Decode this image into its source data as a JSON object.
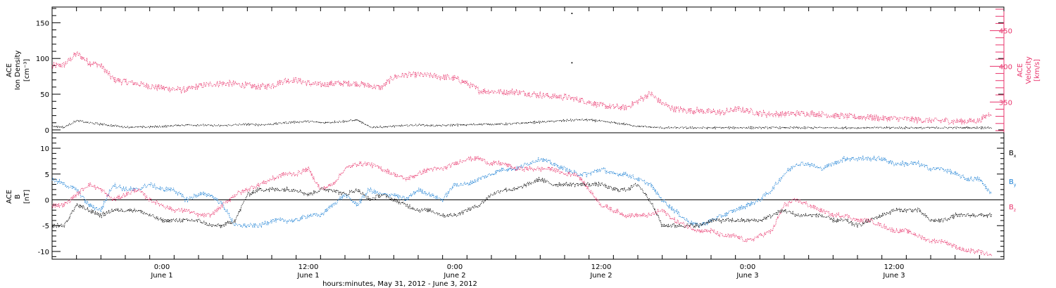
{
  "colors": {
    "black": "#000000",
    "red": "#e8336b",
    "blue": "#1a7fd4"
  },
  "chart_data": [
    {
      "type": "scatter",
      "panel": "top",
      "left_axis_label": [
        "ACE",
        "Ion Density",
        "[cm⁻³]"
      ],
      "right_axis_label": [
        "ACE",
        "Velocity",
        "[km/s]"
      ],
      "left_ticks": [
        "0",
        "50",
        "100",
        "150"
      ],
      "right_ticks": [
        "350",
        "400",
        "450"
      ],
      "left_ylim": [
        -4,
        172
      ],
      "right_ylim": [
        307,
        483
      ],
      "x_hours_range": [
        -9,
        69
      ],
      "series": [
        {
          "axis": "right",
          "color": "red",
          "hours": [
            -9,
            -8,
            -7,
            -6,
            -5,
            -4,
            -3,
            -2,
            -1,
            0,
            1,
            2,
            3,
            4,
            5,
            6,
            7,
            8,
            9,
            10,
            11,
            12,
            13,
            14,
            15,
            16,
            17,
            18,
            19,
            20,
            21,
            22,
            23,
            24,
            25,
            26,
            27,
            28,
            29,
            30,
            31,
            32,
            33,
            34,
            35,
            36,
            37,
            38,
            39,
            40,
            41,
            42,
            43,
            44,
            45,
            46,
            47,
            48,
            49,
            50,
            51,
            52,
            53,
            54,
            55,
            56,
            57,
            58,
            59,
            60,
            61,
            62,
            63,
            64,
            65,
            66,
            67,
            68
          ],
          "values": [
            400,
            402,
            418,
            406,
            401,
            382,
            378,
            376,
            372,
            370,
            368,
            367,
            372,
            375,
            376,
            375,
            373,
            371,
            373,
            380,
            381,
            376,
            374,
            376,
            376,
            376,
            373,
            370,
            385,
            388,
            388,
            387,
            385,
            383,
            376,
            366,
            365,
            364,
            364,
            362,
            360,
            358,
            357,
            354,
            350,
            345,
            343,
            342,
            351,
            362,
            348,
            340,
            338,
            338,
            336,
            335,
            340,
            338,
            334,
            333,
            333,
            334,
            334,
            333,
            331,
            330,
            329,
            329,
            327,
            327,
            326,
            325,
            324,
            324,
            323,
            323,
            324,
            336
          ]
        },
        {
          "axis": "left",
          "color": "black",
          "hours": [
            -9,
            -8,
            -7,
            -6,
            -5,
            -4,
            -3,
            -2,
            -1,
            0,
            1,
            2,
            3,
            4,
            5,
            6,
            7,
            8,
            9,
            10,
            11,
            12,
            13,
            14,
            15,
            16,
            17,
            18,
            19,
            20,
            21,
            22,
            23,
            24,
            25,
            26,
            27,
            28,
            29,
            30,
            31,
            32,
            33,
            34,
            35,
            36,
            37,
            38,
            39,
            40,
            41,
            42,
            43,
            44,
            45,
            46,
            47,
            48,
            49,
            50,
            51,
            52,
            53,
            54,
            55,
            56,
            57,
            58,
            59,
            60,
            61,
            62,
            63,
            64,
            65,
            66,
            67,
            68
          ],
          "values": [
            5,
            4,
            13,
            10,
            8,
            6,
            4,
            4,
            4,
            5,
            6,
            7,
            7,
            6,
            6,
            7,
            8,
            7,
            8,
            10,
            11,
            12,
            10,
            11,
            12,
            14,
            4,
            4,
            5,
            6,
            7,
            6,
            6,
            7,
            7,
            8,
            8,
            8,
            9,
            10,
            11,
            12,
            13,
            14,
            14,
            12,
            10,
            8,
            5,
            4,
            3,
            3,
            3,
            3,
            3,
            3,
            3,
            3,
            3,
            3,
            3,
            3,
            3,
            3,
            3,
            3,
            3,
            3,
            3,
            3,
            3,
            3,
            3,
            3,
            3,
            3,
            3,
            3
          ]
        }
      ],
      "outliers": [
        {
          "hour": 33.6,
          "value": 163
        },
        {
          "hour": 33.6,
          "value": 94
        }
      ]
    },
    {
      "type": "scatter",
      "panel": "bottom",
      "left_axis_label": [
        "ACE",
        "B",
        "[nT]"
      ],
      "left_ticks": [
        "-10",
        "-5",
        "0",
        "5",
        "10"
      ],
      "ylim": [
        -11.5,
        13
      ],
      "x_hours_range": [
        -9,
        69
      ],
      "legend": [
        {
          "label": "B",
          "sub": "x",
          "color": "black"
        },
        {
          "label": "B",
          "sub": "y",
          "color": "blue"
        },
        {
          "label": "B",
          "sub": "z",
          "color": "red"
        }
      ],
      "series": [
        {
          "name": "Bx",
          "color": "black",
          "hours": [
            -9,
            -8,
            -7,
            -6,
            -5,
            -4,
            -3,
            -2,
            -1,
            0,
            1,
            2,
            3,
            4,
            5,
            6,
            7,
            8,
            9,
            10,
            11,
            12,
            13,
            14,
            15,
            16,
            17,
            18,
            19,
            20,
            21,
            22,
            23,
            24,
            25,
            26,
            27,
            28,
            29,
            30,
            31,
            32,
            33,
            34,
            35,
            36,
            37,
            38,
            39,
            40,
            41,
            42,
            43,
            44,
            45,
            46,
            47,
            48,
            49,
            50,
            51,
            52,
            53,
            54,
            55,
            56,
            57,
            58,
            59,
            60,
            61,
            62,
            63,
            64,
            65,
            66,
            67,
            68
          ],
          "values": [
            -5,
            -5,
            -1,
            -2,
            -3,
            -2,
            -2,
            -2,
            -3,
            -4,
            -4,
            -4,
            -4,
            -5,
            -5,
            -4,
            1,
            2,
            2,
            2,
            2,
            1,
            2,
            2,
            1,
            2,
            0,
            1,
            0,
            -1,
            -2,
            -2,
            -3,
            -3,
            -2,
            -1,
            1,
            2,
            2,
            3,
            4,
            3,
            3,
            3,
            3,
            3,
            2,
            2,
            3,
            0,
            -5,
            -5,
            -5,
            -5,
            -4,
            -4,
            -4,
            -4,
            -4,
            -3,
            -2,
            -3,
            -3,
            -3,
            -4,
            -4,
            -5,
            -4,
            -3,
            -2,
            -2,
            -2,
            -4,
            -4,
            -3,
            -3,
            -3,
            -3
          ]
        },
        {
          "name": "By",
          "color": "blue",
          "hours": [
            -9,
            -8,
            -7,
            -6,
            -5,
            -4,
            -3,
            -2,
            -1,
            0,
            1,
            2,
            3,
            4,
            5,
            6,
            7,
            8,
            9,
            10,
            11,
            12,
            13,
            14,
            15,
            16,
            17,
            18,
            19,
            20,
            21,
            22,
            23,
            24,
            25,
            26,
            27,
            28,
            29,
            30,
            31,
            32,
            33,
            34,
            35,
            36,
            37,
            38,
            39,
            40,
            41,
            42,
            43,
            44,
            45,
            46,
            47,
            48,
            49,
            50,
            51,
            52,
            53,
            54,
            55,
            56,
            57,
            58,
            59,
            60,
            61,
            62,
            63,
            64,
            65,
            66,
            67,
            68
          ],
          "values": [
            4,
            3,
            2,
            -1,
            -2,
            3,
            2,
            2,
            3,
            2,
            2,
            0,
            1,
            1,
            -1,
            -5,
            -5,
            -5,
            -4,
            -4,
            -4,
            -3,
            -3,
            -1,
            1,
            -1,
            2,
            1,
            1,
            0,
            2,
            1,
            0,
            3,
            3,
            4,
            5,
            6,
            6,
            7,
            8,
            7,
            6,
            5,
            5,
            6,
            5,
            5,
            4,
            3,
            0,
            -2,
            -4,
            -5,
            -4,
            -3,
            -2,
            -1,
            0,
            2,
            5,
            7,
            7,
            6,
            7,
            8,
            8,
            8,
            8,
            7,
            7,
            7,
            6,
            6,
            5,
            4,
            4,
            1
          ]
        },
        {
          "name": "Bz",
          "color": "red",
          "hours": [
            -9,
            -8,
            -7,
            -6,
            -5,
            -4,
            -3,
            -2,
            -1,
            0,
            1,
            2,
            3,
            4,
            5,
            6,
            7,
            8,
            9,
            10,
            11,
            12,
            13,
            14,
            15,
            16,
            17,
            18,
            19,
            20,
            21,
            22,
            23,
            24,
            25,
            26,
            27,
            28,
            29,
            30,
            31,
            32,
            33,
            34,
            35,
            36,
            37,
            38,
            39,
            40,
            41,
            42,
            43,
            44,
            45,
            46,
            47,
            48,
            49,
            50,
            51,
            52,
            53,
            54,
            55,
            56,
            57,
            58,
            59,
            60,
            61,
            62,
            63,
            64,
            65,
            66,
            67,
            68
          ],
          "values": [
            -1,
            -1,
            1,
            3,
            2,
            0,
            1,
            2,
            0,
            -1,
            -2,
            -2,
            -3,
            -3,
            -1,
            1,
            2,
            3,
            4,
            5,
            5,
            6,
            2,
            3,
            6,
            7,
            7,
            6,
            5,
            4,
            5,
            6,
            6,
            7,
            8,
            8,
            7,
            7,
            6,
            6,
            6,
            6,
            5,
            5,
            2,
            -1,
            -2,
            -3,
            -3,
            -3,
            -2,
            -4,
            -5,
            -6,
            -6,
            -7,
            -7,
            -8,
            -7,
            -6,
            -1,
            0,
            -1,
            -2,
            -3,
            -3,
            -4,
            -4,
            -5,
            -6,
            -6,
            -7,
            -8,
            -8,
            -9,
            -10,
            -10,
            -11
          ]
        }
      ],
      "reference_line_at": 0
    }
  ],
  "x_axis": {
    "major_ticks": [
      {
        "hour": 0,
        "time": "0:00",
        "date": "June 1"
      },
      {
        "hour": 12,
        "time": "12:00",
        "date": "June 1"
      },
      {
        "hour": 24,
        "time": "0:00",
        "date": "June 2"
      },
      {
        "hour": 36,
        "time": "12:00",
        "date": "June 2"
      },
      {
        "hour": 48,
        "time": "0:00",
        "date": "June 3"
      },
      {
        "hour": 60,
        "time": "12:00",
        "date": "June 3"
      }
    ],
    "xlabel": "hours:minutes, May 31, 2012 - June  3, 2012"
  }
}
